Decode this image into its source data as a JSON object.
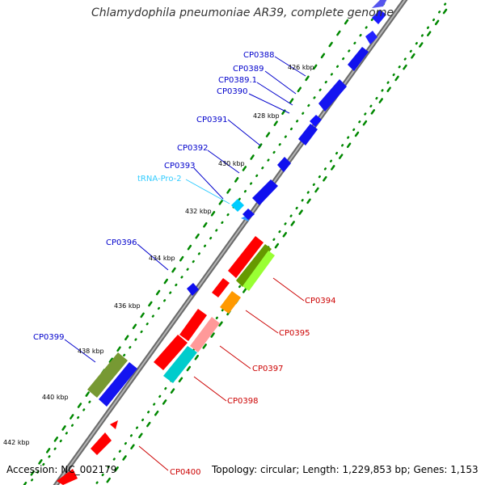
{
  "title": "Chlamydophila pneumoniae AR39, complete genome",
  "footer": {
    "accession": "Accession: NC_002179",
    "summary": "Topology: circular; Length: 1,229,853 bp; Genes: 1,153"
  },
  "ticks": [
    "426 kbp",
    "428 kbp",
    "430 kbp",
    "432 kbp",
    "434 kbp",
    "436 kbp",
    "438 kbp",
    "440 kbp",
    "442 kbp"
  ],
  "gene_labels_left": [
    "CP0388",
    "CP0389",
    "CP0389.1",
    "CP0390",
    "CP0391",
    "CP0392",
    "CP0393",
    "tRNA-Pro-2",
    "CP0396",
    "CP0399"
  ],
  "gene_labels_right": [
    "CP0394",
    "CP0395",
    "CP0397",
    "CP0398",
    "CP0400"
  ],
  "colors": {
    "forward_gene": "#0000ff",
    "trna": "#00ccff",
    "reverse_gene": "#ff0000",
    "green_gene": "#669900",
    "lime_gene": "#99ff33",
    "orange_gene": "#ff9900",
    "pink_gene": "#ff9999",
    "cyan_gene": "#00cccc",
    "olive_gene": "#779933",
    "left_label": "#0000cc",
    "right_label": "#cc0000",
    "trna_label": "#33ccff",
    "backbone": "#888888",
    "dots": "#008800"
  }
}
